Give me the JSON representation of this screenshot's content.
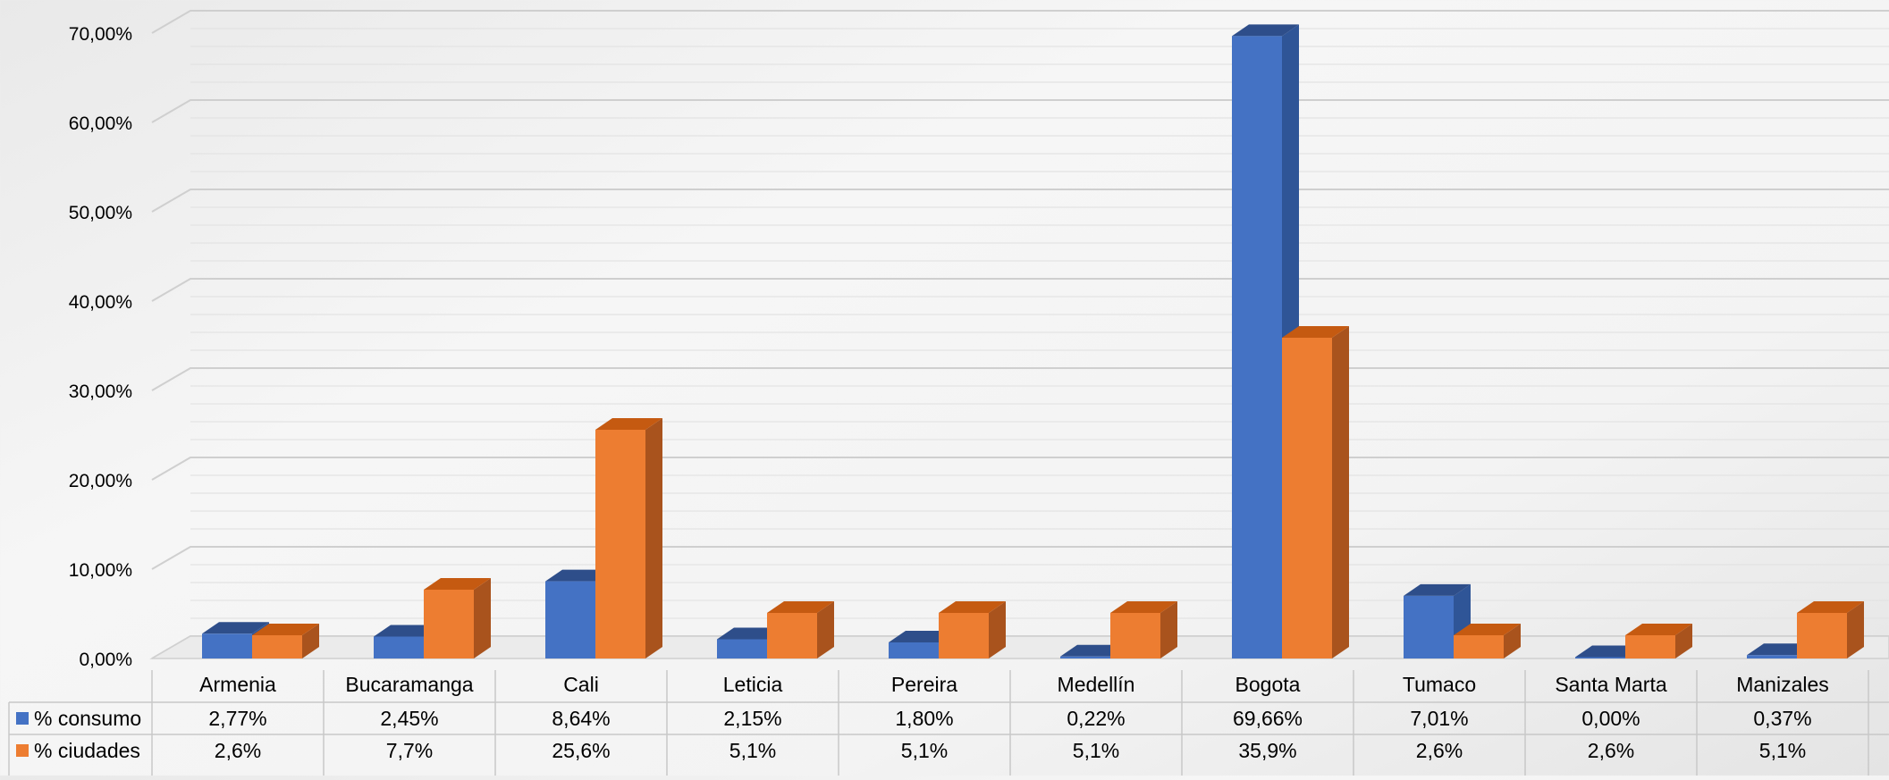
{
  "chart_data": {
    "type": "bar",
    "bar_style": "3d-clustered",
    "categories": [
      "Armenia",
      "Bucaramanga",
      "Cali",
      "Leticia",
      "Pereira",
      "Medellín",
      "Bogota",
      "Tumaco",
      "Santa Marta",
      "Manizales"
    ],
    "series": [
      {
        "name": "% consumo",
        "values": [
          2.77,
          2.45,
          8.64,
          2.15,
          1.8,
          0.22,
          69.66,
          7.01,
          0.0,
          0.37
        ],
        "labels": [
          "2,77%",
          "2,45%",
          "8,64%",
          "2,15%",
          "1,80%",
          "0,22%",
          "69,66%",
          "7,01%",
          "0,00%",
          "0,37%"
        ],
        "color": "#4472C4",
        "side_color": "#2F5597",
        "top_color": "#2E4E8A"
      },
      {
        "name": "% ciudades",
        "values": [
          2.6,
          7.7,
          25.6,
          5.1,
          5.1,
          5.1,
          35.9,
          2.6,
          2.6,
          5.1
        ],
        "labels": [
          "2,6%",
          "7,7%",
          "25,6%",
          "5,1%",
          "5,1%",
          "5,1%",
          "35,9%",
          "2,6%",
          "2,6%",
          "5,1%"
        ],
        "color": "#ED7D31",
        "side_color": "#A9531D",
        "top_color": "#C55A11"
      }
    ],
    "yticks": [
      0,
      10,
      20,
      30,
      40,
      50,
      60,
      70
    ],
    "ytick_labels": [
      "0,00%",
      "10,00%",
      "20,00%",
      "30,00%",
      "40,00%",
      "50,00%",
      "60,00%",
      "70,00%"
    ],
    "ylim": [
      0,
      70
    ],
    "grid": true,
    "data_table": true,
    "title": "",
    "xlabel": "",
    "ylabel": ""
  }
}
